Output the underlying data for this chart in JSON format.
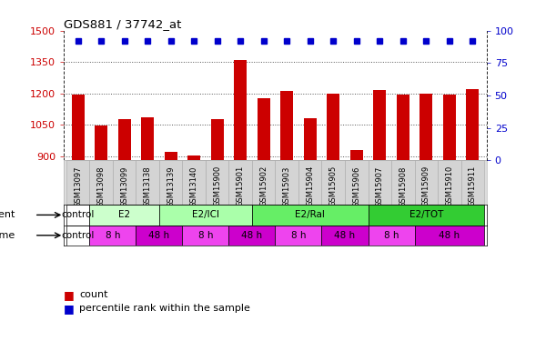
{
  "title": "GDS881 / 37742_at",
  "samples": [
    "GSM13097",
    "GSM13098",
    "GSM13099",
    "GSM13138",
    "GSM13139",
    "GSM13140",
    "GSM15900",
    "GSM15901",
    "GSM15902",
    "GSM15903",
    "GSM15904",
    "GSM15905",
    "GSM15906",
    "GSM15907",
    "GSM15908",
    "GSM15909",
    "GSM15910",
    "GSM15911"
  ],
  "counts": [
    1195,
    1048,
    1078,
    1085,
    920,
    905,
    1075,
    1360,
    1175,
    1210,
    1080,
    1200,
    930,
    1215,
    1195,
    1200,
    1195,
    1220
  ],
  "pct_value": 1450,
  "ylim_left": [
    880,
    1500
  ],
  "ylim_right": [
    0,
    100
  ],
  "yticks_left": [
    900,
    1050,
    1200,
    1350,
    1500
  ],
  "yticks_right": [
    0,
    25,
    50,
    75,
    100
  ],
  "bar_color": "#cc0000",
  "dot_color": "#0000cc",
  "grid_color": "#555555",
  "bg_color": "#ffffff",
  "tick_label_color_left": "#cc0000",
  "tick_label_color_right": "#0000cc",
  "agent_spans": [
    {
      "label": "control",
      "start": 0,
      "end": 1,
      "color": "#ffffff"
    },
    {
      "label": "E2",
      "start": 1,
      "end": 4,
      "color": "#ccffcc"
    },
    {
      "label": "E2/ICI",
      "start": 4,
      "end": 8,
      "color": "#aaffaa"
    },
    {
      "label": "E2/Ral",
      "start": 8,
      "end": 13,
      "color": "#66ee66"
    },
    {
      "label": "E2/TOT",
      "start": 13,
      "end": 18,
      "color": "#33cc33"
    }
  ],
  "time_spans": [
    {
      "label": "control",
      "start": 0,
      "end": 1,
      "color": "#ffffff"
    },
    {
      "label": "8 h",
      "start": 1,
      "end": 3,
      "color": "#ee44ee"
    },
    {
      "label": "48 h",
      "start": 3,
      "end": 5,
      "color": "#cc00cc"
    },
    {
      "label": "8 h",
      "start": 5,
      "end": 7,
      "color": "#ee44ee"
    },
    {
      "label": "48 h",
      "start": 7,
      "end": 9,
      "color": "#cc00cc"
    },
    {
      "label": "8 h",
      "start": 9,
      "end": 11,
      "color": "#ee44ee"
    },
    {
      "label": "48 h",
      "start": 11,
      "end": 13,
      "color": "#cc00cc"
    },
    {
      "label": "8 h",
      "start": 13,
      "end": 15,
      "color": "#ee44ee"
    },
    {
      "label": "48 h",
      "start": 15,
      "end": 18,
      "color": "#cc00cc"
    }
  ]
}
